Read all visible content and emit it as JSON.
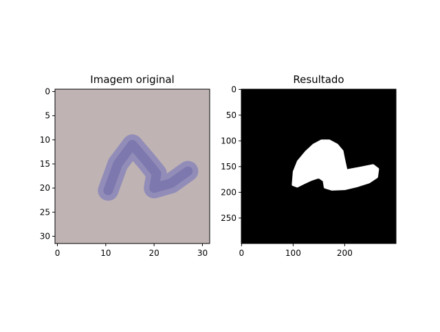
{
  "chart_data": [
    {
      "type": "image",
      "title": "Imagem original",
      "xlim": [
        -0.5,
        31.5
      ],
      "ylim": [
        31.5,
        -0.5
      ],
      "x_ticks": [
        0,
        10,
        20,
        30
      ],
      "y_ticks": [
        0,
        5,
        10,
        15,
        20,
        25,
        30
      ],
      "x_tick_labels": [
        "0",
        "10",
        "20",
        "30"
      ],
      "y_tick_labels": [
        "0",
        "5",
        "10",
        "15",
        "20",
        "25",
        "30"
      ],
      "background_color": "#bfb3b3",
      "stroke_color": "#8a86b8",
      "stroke_dark_color": "#6f6aa6",
      "stroke_path_data_units": [
        [
          10.5,
          20.5
        ],
        [
          12.5,
          15.0
        ],
        [
          15.5,
          11.0
        ],
        [
          18.5,
          14.5
        ],
        [
          20.5,
          17.0
        ],
        [
          20.0,
          20.0
        ],
        [
          23.5,
          19.0
        ],
        [
          27.0,
          16.5
        ]
      ]
    },
    {
      "type": "image",
      "title": "Resultado",
      "xlim": [
        -0.5,
        299.5
      ],
      "ylim": [
        299.5,
        -0.5
      ],
      "x_ticks": [
        0,
        100,
        200
      ],
      "y_ticks": [
        0,
        50,
        100,
        150,
        200,
        250
      ],
      "x_tick_labels": [
        "0",
        "100",
        "200"
      ],
      "y_tick_labels": [
        "0",
        "50",
        "100",
        "150",
        "200",
        "250"
      ],
      "background_color": "#000000",
      "mask_color": "#ffffff",
      "mask_outline_data_units": [
        [
          100,
          185
        ],
        [
          102,
          160
        ],
        [
          110,
          140
        ],
        [
          125,
          122
        ],
        [
          140,
          108
        ],
        [
          155,
          100
        ],
        [
          170,
          100
        ],
        [
          185,
          108
        ],
        [
          195,
          120
        ],
        [
          198,
          135
        ],
        [
          203,
          158
        ],
        [
          230,
          153
        ],
        [
          255,
          148
        ],
        [
          264,
          155
        ],
        [
          262,
          170
        ],
        [
          247,
          180
        ],
        [
          225,
          187
        ],
        [
          200,
          193
        ],
        [
          175,
          194
        ],
        [
          162,
          190
        ],
        [
          160,
          177
        ],
        [
          150,
          170
        ],
        [
          135,
          175
        ],
        [
          120,
          182
        ],
        [
          108,
          188
        ]
      ]
    }
  ]
}
